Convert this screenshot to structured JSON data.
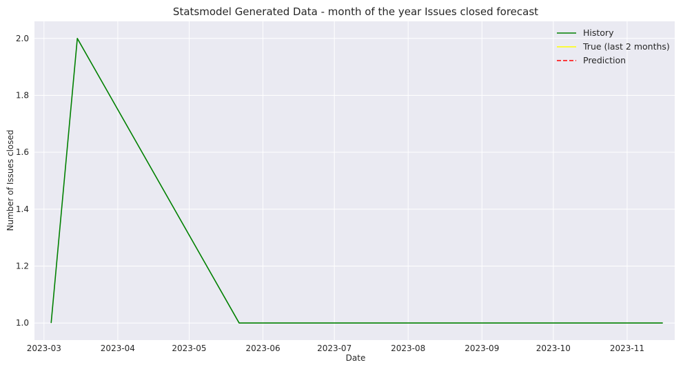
{
  "chart_data": {
    "type": "line",
    "title": "Statsmodel Generated Data - month of the year Issues closed forecast",
    "xlabel": "Date",
    "ylabel": "Number of Issues closed",
    "x_range": [
      "2023-02-25",
      "2023-11-21"
    ],
    "ylim": [
      0.94,
      2.06
    ],
    "x_ticks": [
      {
        "date": "2023-03-01",
        "label": "2023-03"
      },
      {
        "date": "2023-04-01",
        "label": "2023-04"
      },
      {
        "date": "2023-05-01",
        "label": "2023-05"
      },
      {
        "date": "2023-06-01",
        "label": "2023-06"
      },
      {
        "date": "2023-07-01",
        "label": "2023-07"
      },
      {
        "date": "2023-08-01",
        "label": "2023-08"
      },
      {
        "date": "2023-09-01",
        "label": "2023-09"
      },
      {
        "date": "2023-10-01",
        "label": "2023-10"
      },
      {
        "date": "2023-11-01",
        "label": "2023-11"
      }
    ],
    "y_ticks": [
      {
        "value": 1.0,
        "label": "1.0"
      },
      {
        "value": 1.2,
        "label": "1.2"
      },
      {
        "value": 1.4,
        "label": "1.4"
      },
      {
        "value": 1.6,
        "label": "1.6"
      },
      {
        "value": 1.8,
        "label": "1.8"
      },
      {
        "value": 2.0,
        "label": "2.0"
      }
    ],
    "grid": true,
    "background": "#eaeaf2",
    "legend_position": "top-right",
    "series": [
      {
        "name": "History",
        "color": "#008000",
        "dash": "solid",
        "points": [
          {
            "x": "2023-03-04",
            "y": 1
          },
          {
            "x": "2023-03-15",
            "y": 2
          },
          {
            "x": "2023-05-22",
            "y": 1
          },
          {
            "x": "2023-11-16",
            "y": 1
          }
        ]
      },
      {
        "name": "True (last 2 months)",
        "color": "#ffff00",
        "dash": "solid",
        "points": []
      },
      {
        "name": "Prediction",
        "color": "#ff0000",
        "dash": "dashed",
        "points": []
      }
    ]
  }
}
